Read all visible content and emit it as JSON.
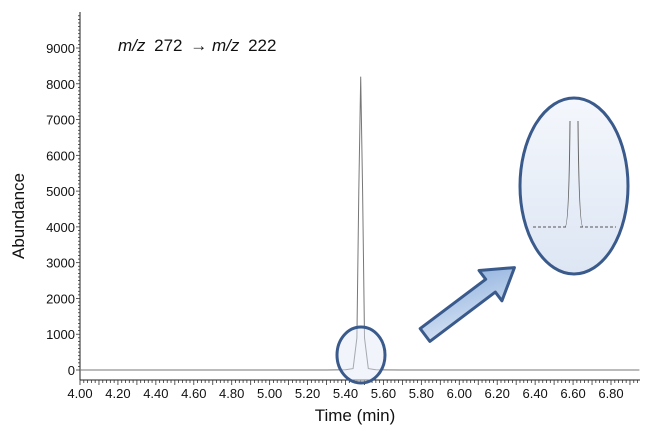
{
  "chart_data": {
    "type": "line",
    "title": "",
    "annotation": {
      "mz_prefix": "m/z",
      "precursor": "272",
      "arrow": "→",
      "product": "222"
    },
    "xlabel": "Time (min)",
    "ylabel": "Abundance",
    "xlim": [
      4.0,
      6.95
    ],
    "ylim": [
      -150,
      9900
    ],
    "x_ticks": [
      "4.00",
      "4.20",
      "4.40",
      "4.60",
      "4.80",
      "5.00",
      "5.20",
      "5.40",
      "5.60",
      "5.80",
      "6.00",
      "6.20",
      "6.40",
      "6.60",
      "6.80"
    ],
    "y_ticks": [
      "0",
      "1000",
      "2000",
      "3000",
      "4000",
      "5000",
      "6000",
      "7000",
      "8000",
      "9000"
    ],
    "grid": false,
    "series": [
      {
        "x": [
          4.0,
          5.3,
          5.4,
          5.44,
          5.46,
          5.47,
          5.48,
          5.49,
          5.5,
          5.52,
          5.56,
          5.7,
          6.95
        ],
        "y": [
          0,
          0,
          5,
          40,
          900,
          5000,
          8200,
          5000,
          900,
          40,
          5,
          0,
          0
        ]
      }
    ],
    "inset": {
      "type": "zoom",
      "peak_time": 5.48,
      "baseline_y": 0
    },
    "highlight_color": "#3a5a8c",
    "arrow_fill": "#aac4e6"
  }
}
